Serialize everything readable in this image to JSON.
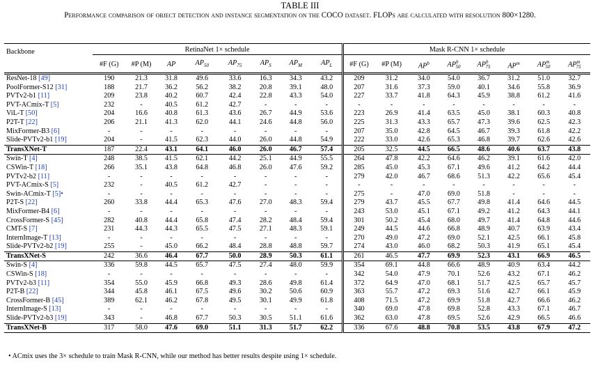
{
  "table_number": "TABLE III",
  "caption": "Performance comparison of object detection and instance segmentation on the COCO dataset. FLOPs are calculated with resolution 800×1280.",
  "groups": {
    "retina": "RetinaNet 1× schedule",
    "mask": "Mask R-CNN 1× schedule"
  },
  "headers": {
    "backbone": "Backbone",
    "flops": "#F (G)",
    "params": "#P (M)",
    "ap": "AP",
    "ap50": "AP50",
    "ap75": "AP75",
    "aps": "APS",
    "apm": "APM",
    "apl": "APL",
    "flops2": "#F (G)",
    "params2": "#P (M)",
    "apb": "APb",
    "apb50": "APb50",
    "apb75": "APb75",
    "apm_": "APm",
    "apm50": "APm50",
    "apm75": "APm75"
  },
  "sections": [
    [
      {
        "name": "ResNet-18",
        "cite": "[49]",
        "v": [
          "190",
          "21.3",
          "31.8",
          "49.6",
          "33.6",
          "16.3",
          "34.3",
          "43.2",
          "209",
          "31.2",
          "34.0",
          "54.0",
          "36.7",
          "31.2",
          "51.0",
          "32.7"
        ]
      },
      {
        "name": "PoolFormer-S12",
        "cite": "[31]",
        "v": [
          "188",
          "21.7",
          "36.2",
          "56.2",
          "38.2",
          "20.8",
          "39.1",
          "48.0",
          "207",
          "31.6",
          "37.3",
          "59.0",
          "40.1",
          "34.6",
          "55.8",
          "36.9"
        ]
      },
      {
        "name": "PVTv2-b1",
        "cite": "[11]",
        "v": [
          "209",
          "23.8",
          "40.2",
          "60.7",
          "42.4",
          "22.8",
          "43.3",
          "54.0",
          "227",
          "33.7",
          "41.8",
          "64.3",
          "45.9",
          "38.8",
          "61.2",
          "41.6"
        ]
      },
      {
        "name": "PVT-ACmix-T",
        "cite": "[5]",
        "v": [
          "232",
          "-",
          "40.5",
          "61.2",
          "42.7",
          "-",
          "-",
          "-",
          "-",
          "-",
          "-",
          "-",
          "-",
          "-",
          "-",
          "-"
        ]
      },
      {
        "name": "ViL-T",
        "cite": "[50]",
        "v": [
          "204",
          "16.6",
          "40.8",
          "61.3",
          "43.6",
          "26.7",
          "44.9",
          "53.6",
          "223",
          "26.9",
          "41.4",
          "63.5",
          "45.0",
          "38.1",
          "60.3",
          "40.8"
        ]
      },
      {
        "name": "P2T-T",
        "cite": "[22]",
        "v": [
          "206",
          "21.1",
          "41.3",
          "62.0",
          "44.1",
          "24.6",
          "44.8",
          "56.0",
          "225",
          "31.3",
          "43.3",
          "65.7",
          "47.3",
          "39.6",
          "62.5",
          "42.3"
        ]
      },
      {
        "name": "MixFormer-B3",
        "cite": "[6]",
        "v": [
          "-",
          "-",
          "-",
          "-",
          "-",
          "-",
          "-",
          "-",
          "207",
          "35.0",
          "42.8",
          "64.5",
          "46.7",
          "39.3",
          "61.8",
          "42.2"
        ]
      },
      {
        "name": "Slide-PVTv2-b1",
        "cite": "[19]",
        "v": [
          "204",
          "-",
          "41.5",
          "62.3",
          "44.0",
          "26.0",
          "44.8",
          "54.9",
          "222",
          "33.0",
          "42.6",
          "65.3",
          "46.8",
          "39.7",
          "62.6",
          "42.6"
        ]
      },
      {
        "name": "TransXNet-T",
        "cite": "",
        "bold": true,
        "v": [
          "187",
          "22.4",
          "43.1",
          "64.1",
          "46.0",
          "26.0",
          "46.7",
          "57.4",
          "205",
          "32.5",
          "44.5",
          "66.5",
          "48.6",
          "40.6",
          "63.7",
          "43.8"
        ]
      }
    ],
    [
      {
        "name": "Swin-T",
        "cite": "[4]",
        "v": [
          "248",
          "38.5",
          "41.5",
          "62.1",
          "44.2",
          "25.1",
          "44.9",
          "55.5",
          "264",
          "47.8",
          "42.2",
          "64.6",
          "46.2",
          "39.1",
          "61.6",
          "42.0"
        ]
      },
      {
        "name": "CSWin-T",
        "cite": "[18]",
        "v": [
          "266",
          "35.1",
          "43.8",
          "64.8",
          "46.8",
          "26.0",
          "47.6",
          "59.2",
          "285",
          "45.0",
          "45.3",
          "67.1",
          "49.6",
          "41.2",
          "64.2",
          "44.4"
        ]
      },
      {
        "name": "PVTv2-b2",
        "cite": "[11]",
        "v": [
          "-",
          "-",
          "-",
          "-",
          "-",
          "-",
          "-",
          "-",
          "279",
          "42.0",
          "46.7",
          "68.6",
          "51.3",
          "42.2",
          "65.6",
          "45.4"
        ]
      },
      {
        "name": "PVT-ACmix-S",
        "cite": "[5]",
        "v": [
          "232",
          "-",
          "40.5",
          "61.2",
          "42.7",
          "-",
          "-",
          "-",
          "-",
          "-",
          "-",
          "-",
          "-",
          "-",
          "-",
          "-"
        ]
      },
      {
        "name": "Swin-ACmix-T",
        "cite": "[5]•",
        "v": [
          "-",
          "-",
          "-",
          "-",
          "-",
          "-",
          "-",
          "-",
          "275",
          "-",
          "47.0",
          "69.0",
          "51.8",
          "-",
          "-",
          "-"
        ]
      },
      {
        "name": "P2T-S",
        "cite": "[22]",
        "v": [
          "260",
          "33.8",
          "44.4",
          "65.3",
          "47.6",
          "27.0",
          "48.3",
          "59.4",
          "279",
          "43.7",
          "45.5",
          "67.7",
          "49.8",
          "41.4",
          "64.6",
          "44.5"
        ]
      },
      {
        "name": "MixFormer-B4",
        "cite": "[6]",
        "v": [
          "-",
          "-",
          "-",
          "-",
          "-",
          "-",
          "-",
          "-",
          "243",
          "53.0",
          "45.1",
          "67.1",
          "49.2",
          "41.2",
          "64.3",
          "44.1"
        ]
      },
      {
        "name": "CrossFormer-S",
        "cite": "[45]",
        "v": [
          "282",
          "40.8",
          "44.4",
          "65.8",
          "47.4",
          "28.2",
          "48.4",
          "59.4",
          "301",
          "50.2",
          "45.4",
          "68.0",
          "49.7",
          "41.4",
          "64.8",
          "44.6"
        ]
      },
      {
        "name": "CMT-S",
        "cite": "[7]",
        "v": [
          "231",
          "44.3",
          "44.3",
          "65.5",
          "47.5",
          "27.1",
          "48.3",
          "59.1",
          "249",
          "44.5",
          "44.6",
          "66.8",
          "48.9",
          "40.7",
          "63.9",
          "43.4"
        ]
      },
      {
        "name": "InternImage-T",
        "cite": "[13]",
        "v": [
          "-",
          "-",
          "-",
          "-",
          "-",
          "-",
          "-",
          "-",
          "270",
          "49.0",
          "47.2",
          "69.0",
          "52.1",
          "42.5",
          "66.1",
          "45.8"
        ]
      },
      {
        "name": "Slide-PVTv2-b2",
        "cite": "[19]",
        "v": [
          "255",
          "-",
          "45.0",
          "66.2",
          "48.4",
          "28.8",
          "48.8",
          "59.7",
          "274",
          "43.0",
          "46.0",
          "68.2",
          "50.3",
          "41.9",
          "65.1",
          "45.4"
        ]
      },
      {
        "name": "TransXNet-S",
        "cite": "",
        "bold": true,
        "v": [
          "242",
          "36.6",
          "46.4",
          "67.7",
          "50.0",
          "28.9",
          "50.3",
          "61.1",
          "261",
          "46.5",
          "47.7",
          "69.9",
          "52.3",
          "43.1",
          "66.9",
          "46.5"
        ]
      }
    ],
    [
      {
        "name": "Swin-S",
        "cite": "[4]",
        "v": [
          "336",
          "59.8",
          "44.5",
          "65.7",
          "47.5",
          "27.4",
          "48.0",
          "59.9",
          "354",
          "69.1",
          "44.8",
          "66.6",
          "48.9",
          "40.9",
          "63.4",
          "44.2"
        ]
      },
      {
        "name": "CSWin-S",
        "cite": "[18]",
        "v": [
          "-",
          "-",
          "-",
          "-",
          "-",
          "-",
          "-",
          "-",
          "342",
          "54.0",
          "47.9",
          "70.1",
          "52.6",
          "43.2",
          "67.1",
          "46.2"
        ]
      },
      {
        "name": "PVTv2-b3",
        "cite": "[11]",
        "v": [
          "354",
          "55.0",
          "45.9",
          "66.8",
          "49.3",
          "28.6",
          "49.8",
          "61.4",
          "372",
          "64.9",
          "47.0",
          "68.1",
          "51.7",
          "42.5",
          "65.7",
          "45.7"
        ]
      },
      {
        "name": "P2T-B",
        "cite": "[22]",
        "v": [
          "344",
          "45.8",
          "46.1",
          "67.5",
          "49.6",
          "30.2",
          "50.6",
          "60.9",
          "363",
          "55.7",
          "47.2",
          "69.3",
          "51.6",
          "42.7",
          "66.1",
          "45.9"
        ]
      },
      {
        "name": "CrossFormer-B",
        "cite": "[45]",
        "v": [
          "389",
          "62.1",
          "46.2",
          "67.8",
          "49.5",
          "30.1",
          "49.9",
          "61.8",
          "408",
          "71.5",
          "47.2",
          "69.9",
          "51.8",
          "42.7",
          "66.6",
          "46.2"
        ]
      },
      {
        "name": "InternImage-S",
        "cite": "[13]",
        "v": [
          "-",
          "-",
          "-",
          "-",
          "-",
          "-",
          "-",
          "-",
          "340",
          "69.0",
          "47.8",
          "69.8",
          "52.8",
          "43.3",
          "67.1",
          "46.7"
        ]
      },
      {
        "name": "Slide-PVTv2-b3",
        "cite": "[19]",
        "v": [
          "343",
          "-",
          "46.8",
          "67.7",
          "50.3",
          "30.5",
          "51.1",
          "61.6",
          "362",
          "63.0",
          "47.8",
          "69.5",
          "52.6",
          "42.9",
          "66.5",
          "46.6"
        ]
      },
      {
        "name": "TransXNet-B",
        "cite": "",
        "bold": true,
        "v": [
          "317",
          "58.0",
          "47.6",
          "69.0",
          "51.1",
          "31.3",
          "51.7",
          "62.2",
          "336",
          "67.6",
          "48.8",
          "70.8",
          "53.5",
          "43.8",
          "67.9",
          "47.2"
        ]
      }
    ]
  ],
  "footnote": "• ACmix uses the 3× schedule to train Mask R-CNN, while our method has better results despite using 1× schedule."
}
